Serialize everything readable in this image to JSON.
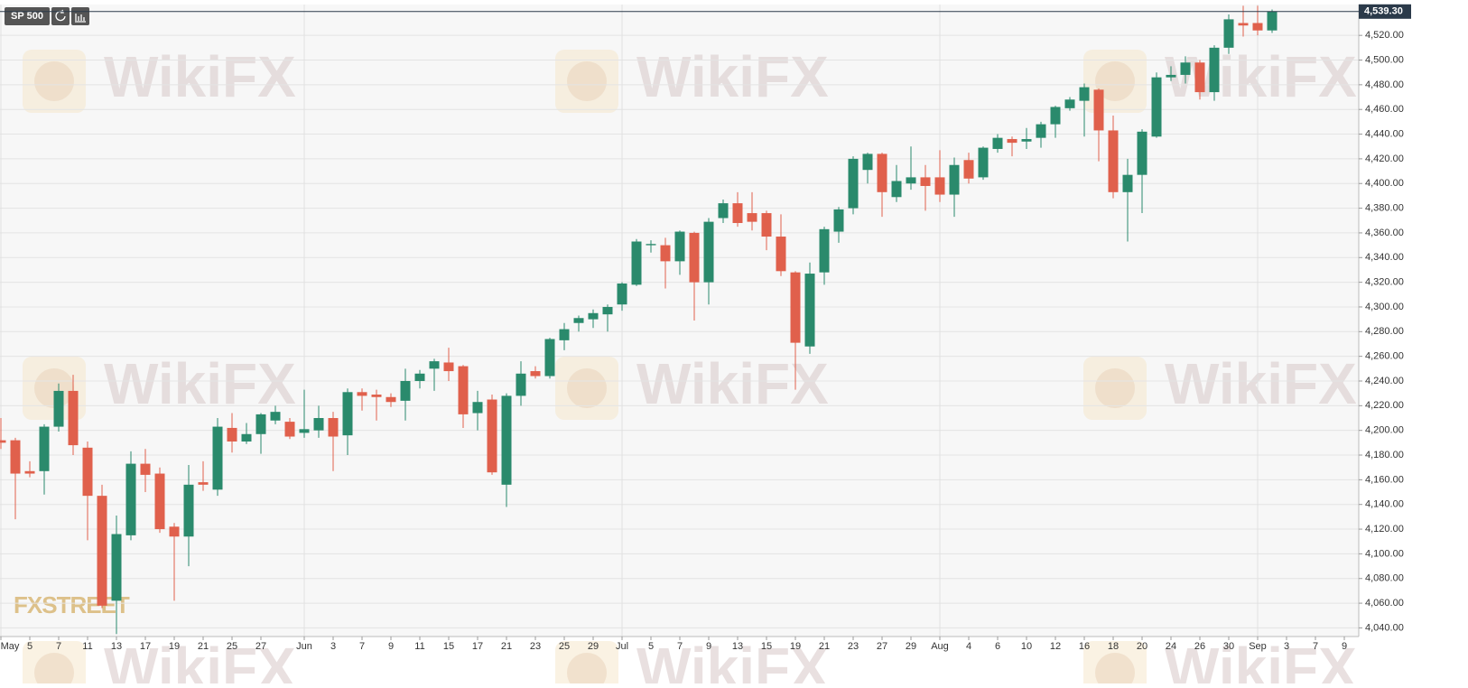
{
  "chart_data": {
    "type": "candlestick",
    "symbol": "SP 500",
    "watermark": "WikiFX",
    "logo": "FXSTREET",
    "categories": [
      "May",
      null,
      "5",
      null,
      "7",
      null,
      "11",
      null,
      "13",
      null,
      "17",
      null,
      "19",
      null,
      "21",
      null,
      "25",
      null,
      "27",
      null,
      null,
      "Jun",
      null,
      "3",
      null,
      "7",
      null,
      "9",
      null,
      "11",
      null,
      "15",
      null,
      "17",
      null,
      "21",
      null,
      "23",
      null,
      "25",
      null,
      "29",
      null,
      "Jul",
      null,
      "5",
      null,
      "7",
      null,
      "9",
      null,
      "13",
      null,
      "15",
      null,
      "19",
      null,
      "21",
      null,
      "23",
      null,
      "27",
      null,
      "29",
      null,
      "Aug",
      null,
      "4",
      null,
      "6",
      null,
      "10",
      null,
      "12",
      null,
      "16",
      null,
      "18",
      null,
      "20",
      null,
      "24",
      null,
      "26",
      null,
      "30",
      null,
      "Sep",
      null,
      "3",
      null,
      "7",
      null,
      "9"
    ],
    "open": [
      4192,
      4192,
      4167,
      4167,
      4203,
      4232,
      4186,
      4147,
      4062,
      4115,
      4173,
      4165,
      4122,
      4114,
      4158,
      4152,
      4202,
      4191,
      4197,
      4208,
      4207,
      4198,
      4200,
      4210,
      4196,
      4231,
      4229,
      4227,
      4224,
      4240,
      4250,
      4255,
      4252,
      4214,
      4225,
      4156,
      4228,
      4248,
      4244,
      4273,
      4287,
      4290,
      4294,
      4302,
      4318,
      4350,
      4350,
      4337,
      4360,
      4320,
      4372,
      4384,
      4376,
      4376,
      4357,
      4328,
      4268,
      4328,
      4361,
      4380,
      4411,
      4424,
      4389,
      4400,
      4405,
      4405,
      4391,
      4419,
      4405,
      4428,
      4436,
      4434,
      4437,
      4448,
      4461,
      4467,
      4476,
      4443,
      4393,
      4407,
      4438,
      4486,
      4488,
      4498,
      4474,
      4510,
      4530,
      4530,
      4524,
      null,
      null,
      null,
      null,
      null
    ],
    "high": [
      4210,
      4194,
      4175,
      4205,
      4238,
      4245,
      4191,
      4156,
      4131,
      4183,
      4185,
      4170,
      4125,
      4172,
      4175,
      4210,
      4214,
      4206,
      4214,
      4220,
      4210,
      4233,
      4220,
      4215,
      4234,
      4234,
      4233,
      4230,
      4250,
      4249,
      4258,
      4267,
      4253,
      4232,
      4229,
      4230,
      4256,
      4252,
      4275,
      4287,
      4293,
      4298,
      4302,
      4320,
      4355,
      4354,
      4356,
      4362,
      4361,
      4372,
      4387,
      4393,
      4393,
      4378,
      4375,
      4329,
      4336,
      4365,
      4381,
      4422,
      4425,
      4425,
      4415,
      4430,
      4415,
      4427,
      4421,
      4425,
      4430,
      4440,
      4438,
      4445,
      4450,
      4463,
      4470,
      4481,
      4477,
      4455,
      4420,
      4444,
      4490,
      4495,
      4503,
      4500,
      4512,
      4537,
      4544,
      4544,
      4541,
      null,
      null,
      null,
      null,
      null
    ],
    "low": [
      4185,
      4128,
      4162,
      4148,
      4199,
      4180,
      4111,
      4056,
      4035,
      4111,
      4150,
      4117,
      4062,
      4090,
      4151,
      4147,
      4182,
      4189,
      4181,
      4205,
      4193,
      4194,
      4194,
      4167,
      4180,
      4216,
      4208,
      4219,
      4208,
      4234,
      4232,
      4240,
      4202,
      4200,
      4164,
      4138,
      4220,
      4242,
      4242,
      4265,
      4280,
      4283,
      4280,
      4297,
      4317,
      4344,
      4315,
      4326,
      4289,
      4302,
      4368,
      4365,
      4362,
      4346,
      4325,
      4233,
      4262,
      4318,
      4352,
      4375,
      4400,
      4373,
      4385,
      4395,
      4378,
      4385,
      4373,
      4400,
      4403,
      4425,
      4422,
      4428,
      4429,
      4437,
      4459,
      4438,
      4418,
      4388,
      4353,
      4376,
      4437,
      4483,
      4481,
      4468,
      4467,
      4505,
      4519,
      4520,
      4522,
      null,
      null,
      null,
      null,
      null
    ],
    "close": [
      4190,
      4165,
      4165,
      4203,
      4232,
      4188,
      4147,
      4058,
      4116,
      4173,
      4164,
      4120,
      4114,
      4156,
      4156,
      4203,
      4191,
      4197,
      4213,
      4215,
      4195,
      4201,
      4210,
      4195,
      4231,
      4228,
      4227,
      4223,
      4240,
      4246,
      4256,
      4248,
      4213,
      4223,
      4166,
      4228,
      4246,
      4244,
      4274,
      4282,
      4291,
      4295,
      4300,
      4319,
      4353,
      4351,
      4337,
      4361,
      4320,
      4369,
      4384,
      4368,
      4369,
      4357,
      4329,
      4271,
      4327,
      4363,
      4379,
      4420,
      4424,
      4393,
      4402,
      4405,
      4398,
      4391,
      4415,
      4404,
      4429,
      4437,
      4433,
      4436,
      4448,
      4462,
      4468,
      4478,
      4443,
      4393,
      4407,
      4442,
      4486,
      4488,
      4498,
      4474,
      4510,
      4533,
      4528,
      4524,
      4539.3,
      null,
      null,
      null,
      null,
      null
    ],
    "up_color": "#2a8a6c",
    "down_color": "#e0604c",
    "last_price": {
      "value": 4539.3,
      "label": "4,539.30"
    },
    "ylim": [
      4033,
      4545
    ],
    "yticks": [
      {
        "value": 4040,
        "label": "4,040.00"
      },
      {
        "value": 4060,
        "label": "4,060.00"
      },
      {
        "value": 4080,
        "label": "4,080.00"
      },
      {
        "value": 4100,
        "label": "4,100.00"
      },
      {
        "value": 4120,
        "label": "4,120.00"
      },
      {
        "value": 4140,
        "label": "4,140.00"
      },
      {
        "value": 4160,
        "label": "4,160.00"
      },
      {
        "value": 4180,
        "label": "4,180.00"
      },
      {
        "value": 4200,
        "label": "4,200.00"
      },
      {
        "value": 4220,
        "label": "4,220.00"
      },
      {
        "value": 4240,
        "label": "4,240.00"
      },
      {
        "value": 4260,
        "label": "4,260.00"
      },
      {
        "value": 4280,
        "label": "4,280.00"
      },
      {
        "value": 4300,
        "label": "4,300.00"
      },
      {
        "value": 4320,
        "label": "4,320.00"
      },
      {
        "value": 4340,
        "label": "4,340.00"
      },
      {
        "value": 4360,
        "label": "4,360.00"
      },
      {
        "value": 4380,
        "label": "4,380.00"
      },
      {
        "value": 4400,
        "label": "4,400.00"
      },
      {
        "value": 4420,
        "label": "4,420.00"
      },
      {
        "value": 4440,
        "label": "4,440.00"
      },
      {
        "value": 4460,
        "label": "4,460.00"
      },
      {
        "value": 4480,
        "label": "4,480.00"
      },
      {
        "value": 4500,
        "label": "4,500.00"
      },
      {
        "value": 4520,
        "label": "4,520.00"
      }
    ],
    "grid": true
  }
}
